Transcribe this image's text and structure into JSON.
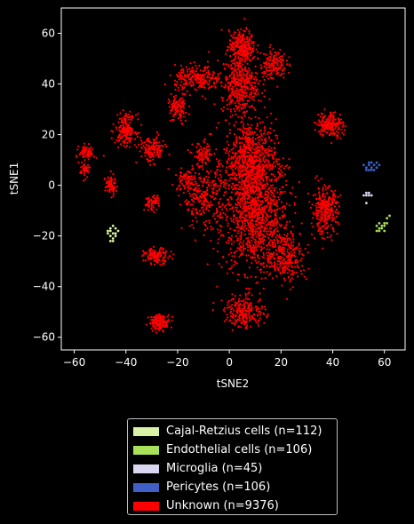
{
  "chart_data": {
    "type": "scatter",
    "xlabel": "tSNE2",
    "ylabel": "tSNE1",
    "xlim": [
      -65,
      68
    ],
    "ylim": [
      -65,
      70
    ],
    "xticks": [
      -60,
      -40,
      -20,
      0,
      20,
      40,
      60
    ],
    "yticks": [
      -60,
      -40,
      -20,
      0,
      20,
      40,
      60
    ],
    "grid": false,
    "legend_position": "bottom-center-outside",
    "series": [
      {
        "name": "Cajal-Retzius cells (n=112)",
        "color": "#d9f2a6",
        "points": [
          [
            -46,
            -18
          ],
          [
            -45,
            -16
          ],
          [
            -44,
            -17
          ],
          [
            -46,
            -20
          ],
          [
            -45,
            -21
          ],
          [
            -47,
            -18
          ],
          [
            -44,
            -19
          ],
          [
            -45,
            -19
          ],
          [
            -46,
            -17
          ],
          [
            -44,
            -20
          ],
          [
            -43,
            -18
          ],
          [
            -45,
            -22
          ],
          [
            -47,
            -19
          ],
          [
            -46,
            -22
          ]
        ]
      },
      {
        "name": "Endothelial cells (n=106)",
        "color": "#a8e05a",
        "points": [
          [
            58,
            -17
          ],
          [
            59,
            -16
          ],
          [
            57,
            -18
          ],
          [
            60,
            -15
          ],
          [
            61,
            -13
          ],
          [
            62,
            -12
          ],
          [
            58,
            -18
          ],
          [
            59,
            -17
          ],
          [
            60,
            -18
          ],
          [
            57,
            -16
          ],
          [
            58,
            -15
          ],
          [
            61,
            -15
          ],
          [
            60,
            -16
          ]
        ]
      },
      {
        "name": "Microglia (n=45)",
        "color": "#d9d6f0",
        "points": [
          [
            53,
            -4
          ],
          [
            54,
            -4
          ],
          [
            52,
            -4
          ],
          [
            53,
            -3
          ],
          [
            54,
            -3
          ],
          [
            53,
            -7
          ],
          [
            55,
            -4
          ]
        ]
      },
      {
        "name": "Pericytes (n=106)",
        "color": "#4060c8",
        "points": [
          [
            53,
            7
          ],
          [
            54,
            8
          ],
          [
            55,
            7
          ],
          [
            56,
            8
          ],
          [
            57,
            7
          ],
          [
            53,
            6
          ],
          [
            54,
            6
          ],
          [
            56,
            6
          ],
          [
            55,
            9
          ],
          [
            57,
            9
          ],
          [
            52,
            8
          ],
          [
            58,
            8
          ],
          [
            55,
            6
          ],
          [
            54,
            9
          ]
        ]
      },
      {
        "name": "Unknown (n=9376)",
        "color": "#ff0000",
        "clusters": [
          {
            "center": [
              10,
              -12
            ],
            "spread": [
              13,
              22
            ],
            "n": 1100
          },
          {
            "center": [
              8,
              10
            ],
            "spread": [
              10,
              16
            ],
            "n": 700
          },
          {
            "center": [
              4,
              40
            ],
            "spread": [
              7,
              12
            ],
            "n": 420
          },
          {
            "center": [
              5,
              55
            ],
            "spread": [
              5,
              6
            ],
            "n": 250
          },
          {
            "center": [
              17,
              48
            ],
            "spread": [
              5,
              6
            ],
            "n": 150
          },
          {
            "center": [
              -12,
              42
            ],
            "spread": [
              9,
              5
            ],
            "n": 230
          },
          {
            "center": [
              -20,
              30
            ],
            "spread": [
              4,
              6
            ],
            "n": 110
          },
          {
            "center": [
              -40,
              22
            ],
            "spread": [
              4,
              6
            ],
            "n": 180
          },
          {
            "center": [
              -30,
              14
            ],
            "spread": [
              5,
              5
            ],
            "n": 150
          },
          {
            "center": [
              -55,
              13
            ],
            "spread": [
              3,
              3
            ],
            "n": 70
          },
          {
            "center": [
              -56,
              6
            ],
            "spread": [
              2,
              3
            ],
            "n": 50
          },
          {
            "center": [
              -46,
              0
            ],
            "spread": [
              2,
              4
            ],
            "n": 70
          },
          {
            "center": [
              -30,
              -7
            ],
            "spread": [
              3,
              3
            ],
            "n": 60
          },
          {
            "center": [
              -28,
              -28
            ],
            "spread": [
              5,
              3
            ],
            "n": 120
          },
          {
            "center": [
              -27,
              -54
            ],
            "spread": [
              4,
              3
            ],
            "n": 140
          },
          {
            "center": [
              39,
              24
            ],
            "spread": [
              5,
              5
            ],
            "n": 190
          },
          {
            "center": [
              37,
              -10
            ],
            "spread": [
              5,
              9
            ],
            "n": 300
          },
          {
            "center": [
              22,
              -28
            ],
            "spread": [
              8,
              10
            ],
            "n": 250
          },
          {
            "center": [
              -10,
              -5
            ],
            "spread": [
              8,
              12
            ],
            "n": 250
          },
          {
            "center": [
              -10,
              12
            ],
            "spread": [
              4,
              5
            ],
            "n": 90
          },
          {
            "center": [
              -17,
              2
            ],
            "spread": [
              4,
              4
            ],
            "n": 70
          },
          {
            "center": [
              6,
              -50
            ],
            "spread": [
              8,
              6
            ],
            "n": 220
          }
        ]
      }
    ]
  }
}
